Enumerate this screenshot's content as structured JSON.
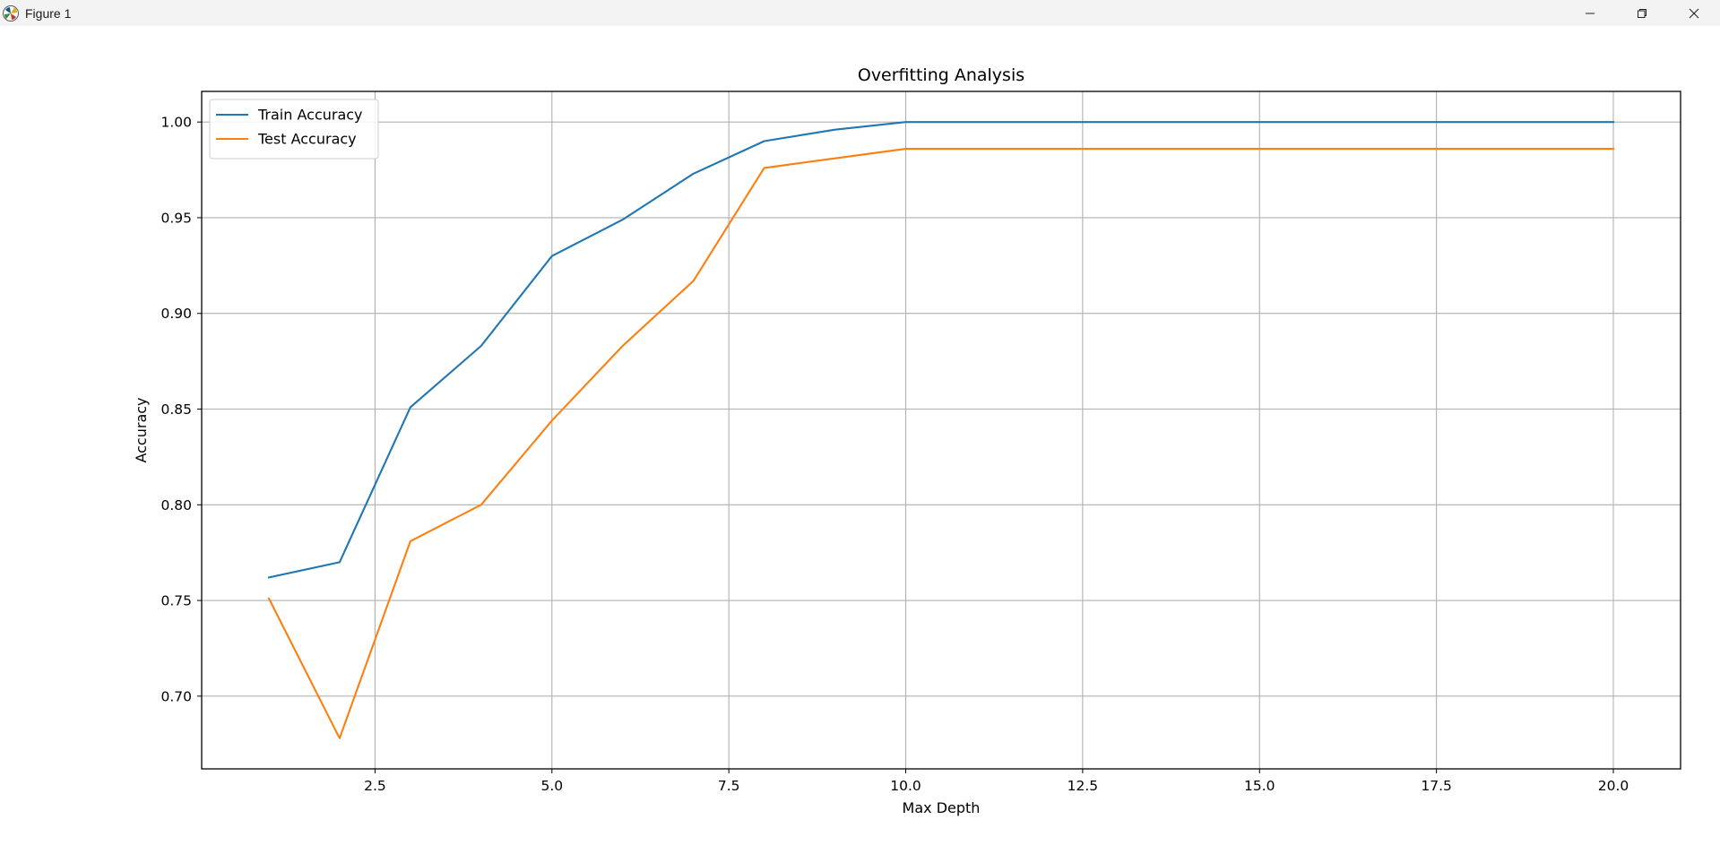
{
  "window": {
    "title": "Figure 1",
    "icons": [
      "matplotlib-app-icon",
      "minimize-icon",
      "restore-icon",
      "close-icon"
    ]
  },
  "chart_data": {
    "type": "line",
    "title": "Overfitting Analysis",
    "xlabel": "Max Depth",
    "ylabel": "Accuracy",
    "xlim": [
      0.05,
      20.95
    ],
    "ylim": [
      0.662,
      1.016
    ],
    "xticks": [
      2.5,
      5.0,
      7.5,
      10.0,
      12.5,
      15.0,
      17.5,
      20.0
    ],
    "xtick_labels": [
      "2.5",
      "5.0",
      "7.5",
      "10.0",
      "12.5",
      "15.0",
      "17.5",
      "20.0"
    ],
    "yticks": [
      0.7,
      0.75,
      0.8,
      0.85,
      0.9,
      0.95,
      1.0
    ],
    "ytick_labels": [
      "0.70",
      "0.75",
      "0.80",
      "0.85",
      "0.90",
      "0.95",
      "1.00"
    ],
    "grid": true,
    "legend_position": "upper-left",
    "x": [
      1,
      2,
      3,
      4,
      5,
      6,
      7,
      8,
      9,
      10,
      11,
      12,
      13,
      14,
      15,
      16,
      17,
      18,
      19,
      20
    ],
    "series": [
      {
        "name": "Train Accuracy",
        "color": "#1f77b4",
        "values": [
          0.762,
          0.77,
          0.851,
          0.883,
          0.93,
          0.949,
          0.973,
          0.99,
          0.996,
          1.0,
          1.0,
          1.0,
          1.0,
          1.0,
          1.0,
          1.0,
          1.0,
          1.0,
          1.0,
          1.0
        ]
      },
      {
        "name": "Test Accuracy",
        "color": "#ff7f0e",
        "values": [
          0.751,
          0.678,
          0.781,
          0.8,
          0.844,
          0.883,
          0.917,
          0.976,
          0.981,
          0.986,
          0.986,
          0.986,
          0.986,
          0.986,
          0.986,
          0.986,
          0.986,
          0.986,
          0.986,
          0.986
        ]
      }
    ]
  }
}
